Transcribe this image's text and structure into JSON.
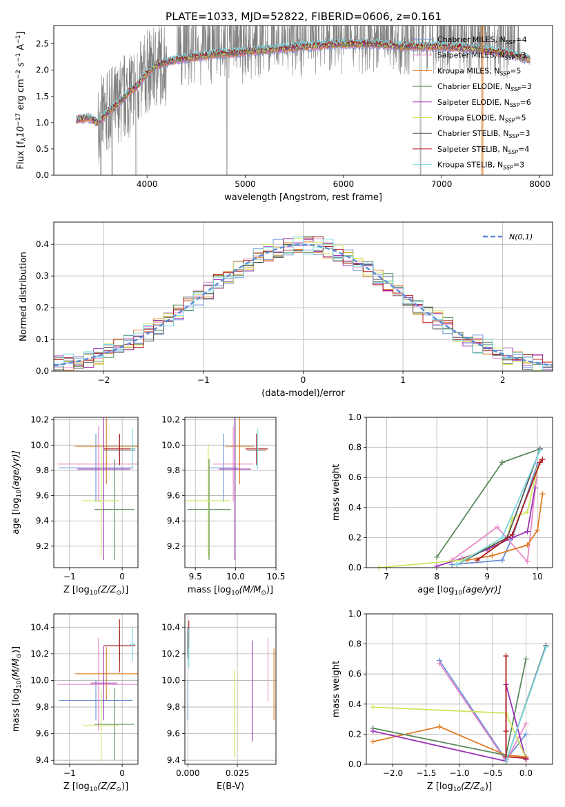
{
  "figure": {
    "title": "PLATE=1033, MJD=52822, FIBERID=0606, z=0.161",
    "model_colors": {
      "Chabrier MILES": "#6b8fd6",
      "Salpeter MILES": "#e98ac6",
      "Kroupa MILES": "#e07b22",
      "Chabrier ELODIE": "#5a8a5a",
      "Salpeter ELODIE": "#9b30b5",
      "Kroupa ELODIE": "#cde65c",
      "Chabrier STELIB": "#555555",
      "Salpeter STELIB": "#b01818",
      "Kroupa STELIB": "#7ad8e0"
    }
  },
  "chart_data": [
    {
      "id": "spectrum",
      "type": "line",
      "xlabel": "wavelength [Angstrom, rest frame]",
      "ylabel": "Flux [f",
      "ylabel_sub": "λ",
      "ylabel_rest": "10",
      "ylabel_exp": "−17",
      "ylabel_units": " erg cm",
      "ylabel_units_exp1": "−2",
      "ylabel_units2": " s",
      "ylabel_units_exp2": "−1",
      "ylabel_units3": " A",
      "ylabel_units_exp3": "−1",
      "ylabel_end": "]",
      "xlim": [
        3050,
        8130
      ],
      "ylim": [
        0,
        2.85
      ],
      "xticks": [
        "4000",
        "5000",
        "6000",
        "7000",
        "8000"
      ],
      "xtick_values": [
        4000,
        5000,
        6000,
        7000,
        8000
      ],
      "yticks": [
        "0.0",
        "0.5",
        "1.0",
        "1.5",
        "2.0",
        "2.5"
      ],
      "ytick_values": [
        0,
        0.5,
        1.0,
        1.5,
        2.0,
        2.5
      ],
      "data_color": "#808080",
      "continuum": [
        [
          3280,
          1.05
        ],
        [
          3400,
          1.1
        ],
        [
          3500,
          1.0
        ],
        [
          3600,
          1.2
        ],
        [
          3700,
          1.35
        ],
        [
          3800,
          1.55
        ],
        [
          3900,
          1.7
        ],
        [
          4000,
          1.95
        ],
        [
          4100,
          2.1
        ],
        [
          4300,
          2.2
        ],
        [
          4500,
          2.25
        ],
        [
          4700,
          2.3
        ],
        [
          5000,
          2.35
        ],
        [
          5300,
          2.4
        ],
        [
          5600,
          2.45
        ],
        [
          6000,
          2.5
        ],
        [
          6300,
          2.5
        ],
        [
          6600,
          2.45
        ],
        [
          7000,
          2.45
        ],
        [
          7400,
          2.4
        ],
        [
          7700,
          2.3
        ],
        [
          7900,
          2.2
        ]
      ],
      "legend": [
        {
          "label": "Chabrier MILES, N",
          "sub": "SSP",
          "tail": "=4",
          "color": "#6b8fd6"
        },
        {
          "label": "Salpeter MILES, N",
          "sub": "SSP",
          "tail": "=3",
          "color": "#e98ac6"
        },
        {
          "label": "Kroupa MILES, N",
          "sub": "SSP",
          "tail": "=5",
          "color": "#e07b22"
        },
        {
          "label": "Chabrier ELODIE, N",
          "sub": "SSP",
          "tail": "=3",
          "color": "#5a8a5a"
        },
        {
          "label": "Salpeter ELODIE, N",
          "sub": "SSP",
          "tail": "=6",
          "color": "#9b30b5"
        },
        {
          "label": "Kroupa ELODIE, N",
          "sub": "SSP",
          "tail": "=5",
          "color": "#cde65c"
        },
        {
          "label": "Chabrier STELIB, N",
          "sub": "SSP",
          "tail": "=3",
          "color": "#555555"
        },
        {
          "label": "Salpeter STELIB, N",
          "sub": "SSP",
          "tail": "=4",
          "color": "#b01818"
        },
        {
          "label": "Kroupa STELIB, N",
          "sub": "SSP",
          "tail": "=3",
          "color": "#7ad8e0"
        }
      ]
    },
    {
      "id": "residuals",
      "type": "histogram",
      "xlabel": "(data-model)/error",
      "ylabel": "Normed distribution",
      "xlim": [
        -2.5,
        2.5
      ],
      "ylim": [
        0,
        0.47
      ],
      "xticks": [
        "−2",
        "−1",
        "0",
        "1",
        "2"
      ],
      "xtick_values": [
        -2,
        -1,
        0,
        1,
        2
      ],
      "yticks": [
        "0.0",
        "0.1",
        "0.2",
        "0.3",
        "0.4"
      ],
      "ytick_values": [
        0,
        0.1,
        0.2,
        0.3,
        0.4
      ],
      "bin_width": 0.1,
      "legend": "N(0,1)",
      "gaussian_color": "#5b8ad6"
    },
    {
      "id": "age-vs-z",
      "type": "errorbar",
      "xlabel": "Z [log",
      "xlabel_sub": "10",
      "xlabel_rest": "(Z/Z",
      "xlabel_sun": "⊙",
      "xlabel_end": ")]",
      "ylabel": "age  [log",
      "ylabel_sub": "10",
      "ylabel_rest": "(age/yr)]",
      "xlim": [
        -1.3,
        0.3
      ],
      "ylim": [
        9.03,
        10.22
      ],
      "xticks": [
        "−1",
        "0"
      ],
      "xtick_values": [
        -1,
        0
      ],
      "yticks": [
        "9.2",
        "9.4",
        "9.6",
        "9.8",
        "10.0",
        "10.2"
      ],
      "ytick_values": [
        9.2,
        9.4,
        9.6,
        9.8,
        10.0,
        10.2
      ],
      "points": [
        {
          "model": "Chabrier MILES",
          "x": -0.5,
          "xerr": 0.7,
          "y": 9.82,
          "yerr": 0.27
        },
        {
          "model": "Salpeter MILES",
          "x": -0.45,
          "xerr": 0.78,
          "y": 9.85,
          "yerr": 0.3
        },
        {
          "model": "Kroupa MILES",
          "x": -0.3,
          "xerr": 0.6,
          "y": 9.99,
          "yerr": 0.3
        },
        {
          "model": "Chabrier ELODIE",
          "x": -0.15,
          "xerr": 0.38,
          "y": 9.49,
          "yerr": 0.4
        },
        {
          "model": "Salpeter ELODIE",
          "x": -0.35,
          "xerr": 0.5,
          "y": 9.81,
          "yerr": 0.72
        },
        {
          "model": "Kroupa ELODIE",
          "x": -0.4,
          "xerr": 0.35,
          "y": 9.56,
          "yerr": 0.45
        },
        {
          "model": "Chabrier STELIB",
          "x": -0.05,
          "xerr": 0.3,
          "y": 9.96,
          "yerr": 0.12
        },
        {
          "model": "Salpeter STELIB",
          "x": -0.05,
          "xerr": 0.3,
          "y": 9.97,
          "yerr": 0.12
        },
        {
          "model": "Kroupa STELIB",
          "x": 0.2,
          "xerr": 0.05,
          "y": 9.97,
          "yerr": 0.16
        }
      ]
    },
    {
      "id": "age-vs-mass",
      "type": "errorbar",
      "xlabel": "mass [log",
      "xlabel_sub": "10",
      "xlabel_rest": "(M/M",
      "xlabel_sun": "⊙",
      "xlabel_end": ")]",
      "xlim": [
        9.37,
        10.5
      ],
      "ylim": [
        9.03,
        10.22
      ],
      "xticks": [
        "9.5",
        "10.0",
        "10.5"
      ],
      "xtick_values": [
        9.5,
        10.0,
        10.5
      ],
      "yticks": [
        "9.2",
        "9.4",
        "9.6",
        "9.8",
        "10.0",
        "10.2"
      ],
      "ytick_values": [
        9.2,
        9.4,
        9.6,
        9.8,
        10.0,
        10.2
      ],
      "points": [
        {
          "model": "Chabrier MILES",
          "x": 9.85,
          "xerr": 0.18,
          "y": 9.82,
          "yerr": 0.27
        },
        {
          "model": "Salpeter MILES",
          "x": 9.97,
          "xerr": 0.25,
          "y": 9.85,
          "yerr": 0.3
        },
        {
          "model": "Kroupa MILES",
          "x": 10.05,
          "xerr": 0.18,
          "y": 9.99,
          "yerr": 0.3
        },
        {
          "model": "Chabrier ELODIE",
          "x": 9.67,
          "xerr": 0.27,
          "y": 9.49,
          "yerr": 0.4
        },
        {
          "model": "Salpeter ELODIE",
          "x": 9.99,
          "xerr": 0.2,
          "y": 9.81,
          "yerr": 0.72
        },
        {
          "model": "Kroupa ELODIE",
          "x": 9.66,
          "xerr": 0.27,
          "y": 9.56,
          "yerr": 0.45
        },
        {
          "model": "Chabrier STELIB",
          "x": 10.26,
          "xerr": 0.12,
          "y": 9.96,
          "yerr": 0.12
        },
        {
          "model": "Salpeter STELIB",
          "x": 10.26,
          "xerr": 0.14,
          "y": 9.97,
          "yerr": 0.12
        },
        {
          "model": "Kroupa STELIB",
          "x": 10.27,
          "xerr": 0.01,
          "y": 9.97,
          "yerr": 0.16
        }
      ]
    },
    {
      "id": "weight-vs-age",
      "type": "line",
      "xlabel": "age  [log",
      "xlabel_sub": "10",
      "xlabel_rest": "(age/yr)]",
      "ylabel": "mass weight",
      "xlim": [
        6.6,
        10.3
      ],
      "ylim": [
        0,
        1.0
      ],
      "xticks": [
        "7",
        "8",
        "9",
        "10"
      ],
      "xtick_values": [
        7,
        8,
        9,
        10
      ],
      "yticks": [
        "0.0",
        "0.2",
        "0.4",
        "0.6",
        "0.8",
        "1.0"
      ],
      "ytick_values": [
        0,
        0.2,
        0.4,
        0.6,
        0.8,
        1.0
      ],
      "series": [
        {
          "model": "Chabrier MILES",
          "x": [
            8.3,
            9.3,
            9.5,
            10.0
          ],
          "y": [
            0.02,
            0.05,
            0.2,
            0.69
          ]
        },
        {
          "model": "Salpeter MILES",
          "x": [
            8.3,
            9.2,
            9.8,
            10.0
          ],
          "y": [
            0.05,
            0.27,
            0.04,
            0.66
          ]
        },
        {
          "model": "Kroupa MILES",
          "x": [
            8.6,
            9.1,
            9.8,
            10.0,
            10.1
          ],
          "y": [
            0.05,
            0.08,
            0.15,
            0.25,
            0.49
          ]
        },
        {
          "model": "Chabrier ELODIE",
          "x": [
            8.0,
            9.3,
            10.05
          ],
          "y": [
            0.07,
            0.7,
            0.79
          ]
        },
        {
          "model": "Salpeter ELODIE",
          "x": [
            8.0,
            8.5,
            9.0,
            9.5,
            9.8,
            9.95
          ],
          "y": [
            0.01,
            0.06,
            0.12,
            0.2,
            0.24,
            0.53
          ]
        },
        {
          "model": "Kroupa ELODIE",
          "x": [
            6.85,
            8.5,
            9.4,
            9.5,
            9.8,
            10.0
          ],
          "y": [
            0.0,
            0.05,
            0.2,
            0.33,
            0.37,
            0.66
          ]
        },
        {
          "model": "Chabrier STELIB",
          "x": [
            8.4,
            9.4,
            10.05
          ],
          "y": [
            0.02,
            0.2,
            0.79
          ]
        },
        {
          "model": "Salpeter STELIB",
          "x": [
            8.8,
            9.5,
            10.05,
            10.1
          ],
          "y": [
            0.05,
            0.22,
            0.7,
            0.72
          ]
        },
        {
          "model": "Kroupa STELIB",
          "x": [
            8.4,
            9.3,
            10.05
          ],
          "y": [
            0.02,
            0.2,
            0.78
          ]
        }
      ]
    },
    {
      "id": "mass-vs-z",
      "type": "errorbar",
      "xlabel": "Z [log",
      "xlabel_sub": "10",
      "xlabel_rest": "(Z/Z",
      "xlabel_sun": "⊙",
      "xlabel_end": ")]",
      "ylabel": "mass [log",
      "ylabel_sub": "10",
      "ylabel_rest": "(M/M",
      "ylabel_sun": "⊙",
      "ylabel_end": ")]",
      "xlim": [
        -1.3,
        0.3
      ],
      "ylim": [
        9.37,
        10.5
      ],
      "xticks": [
        "−1",
        "0"
      ],
      "xtick_values": [
        -1,
        0
      ],
      "yticks": [
        "9.4",
        "9.6",
        "9.8",
        "10.0",
        "10.2",
        "10.4"
      ],
      "ytick_values": [
        9.4,
        9.6,
        9.8,
        10.0,
        10.2,
        10.4
      ],
      "points": [
        {
          "model": "Chabrier MILES",
          "x": -0.5,
          "xerr": 0.7,
          "y": 9.85,
          "yerr": 0.15
        },
        {
          "model": "Salpeter MILES",
          "x": -0.45,
          "xerr": 0.78,
          "y": 9.97,
          "yerr": 0.35
        },
        {
          "model": "Kroupa MILES",
          "x": -0.3,
          "xerr": 0.6,
          "y": 10.05,
          "yerr": 0.2
        },
        {
          "model": "Chabrier ELODIE",
          "x": -0.15,
          "xerr": 0.38,
          "y": 9.67,
          "yerr": 0.27
        },
        {
          "model": "Salpeter ELODIE",
          "x": -0.35,
          "xerr": 0.25,
          "y": 9.98,
          "yerr": 0.28
        },
        {
          "model": "Kroupa ELODIE",
          "x": -0.4,
          "xerr": 0.35,
          "y": 9.66,
          "yerr": 0.27
        },
        {
          "model": "Chabrier STELIB",
          "x": -0.05,
          "xerr": 0.3,
          "y": 10.26,
          "yerr": 0.12
        },
        {
          "model": "Salpeter STELIB",
          "x": -0.05,
          "xerr": 0.3,
          "y": 10.26,
          "yerr": 0.2
        },
        {
          "model": "Kroupa STELIB",
          "x": 0.2,
          "xerr": 0.05,
          "y": 10.27,
          "yerr": 0.13
        }
      ]
    },
    {
      "id": "mass-vs-ebv",
      "type": "errorbar",
      "xlabel": "E(B-V)",
      "xlim": [
        -0.0015,
        0.0445
      ],
      "ylim": [
        9.37,
        10.5
      ],
      "xticks": [
        "0.000",
        "0.025"
      ],
      "xtick_values": [
        0,
        0.025
      ],
      "yticks": [
        "9.4",
        "9.6",
        "9.8",
        "10.0",
        "10.2",
        "10.4"
      ],
      "ytick_values": [
        9.4,
        9.6,
        9.8,
        10.0,
        10.2,
        10.4
      ],
      "points": [
        {
          "model": "Chabrier MILES",
          "x": 0.0,
          "y": 9.85,
          "yerr": 0.15
        },
        {
          "model": "Salpeter MILES",
          "x": 0.0405,
          "y": 10.08,
          "yerr": 0.24
        },
        {
          "model": "Kroupa MILES",
          "x": 0.0435,
          "y": 9.97,
          "yerr": 0.27
        },
        {
          "model": "Chabrier ELODIE",
          "x": 0.0,
          "y": 10.26,
          "yerr": 0.1
        },
        {
          "model": "Salpeter ELODIE",
          "x": 0.0325,
          "y": 9.92,
          "yerr": 0.38
        },
        {
          "model": "Kroupa ELODIE",
          "x": 0.0235,
          "y": 9.75,
          "yerr": 0.33
        },
        {
          "model": "Chabrier STELIB",
          "x": 0.0,
          "y": 10.3,
          "yerr": 0.1
        },
        {
          "model": "Salpeter STELIB",
          "x": 0.0005,
          "y": 10.35,
          "yerr": 0.1
        },
        {
          "model": "Kroupa STELIB",
          "x": 0.0005,
          "y": 10.24,
          "yerr": 0.15
        }
      ]
    },
    {
      "id": "weight-vs-z",
      "type": "line",
      "xlabel": "Z [log",
      "xlabel_sub": "10",
      "xlabel_rest": "(Z/Z",
      "xlabel_sun": "⊙",
      "xlabel_end": ")]",
      "ylabel": "mass weight",
      "xlim": [
        -2.4,
        0.4
      ],
      "ylim": [
        0,
        1.0
      ],
      "xticks": [
        "−2.0",
        "−1.5",
        "−1.0",
        "−0.5",
        "0.0"
      ],
      "xtick_values": [
        -2.0,
        -1.5,
        -1.0,
        -0.5,
        0.0
      ],
      "yticks": [
        "0.0",
        "0.2",
        "0.4",
        "0.6",
        "0.8",
        "1.0"
      ],
      "ytick_values": [
        0,
        0.2,
        0.4,
        0.6,
        0.8,
        1.0
      ],
      "series": [
        {
          "model": "Chabrier MILES",
          "x": [
            -1.3,
            -0.3,
            0.0
          ],
          "y": [
            0.69,
            0.03,
            0.2
          ]
        },
        {
          "model": "Salpeter MILES",
          "x": [
            -1.3,
            -0.3,
            0.0
          ],
          "y": [
            0.67,
            0.02,
            0.27
          ]
        },
        {
          "model": "Kroupa MILES",
          "x": [
            -2.3,
            -1.3,
            -0.3,
            0.0
          ],
          "y": [
            0.15,
            0.25,
            0.06,
            0.05
          ]
        },
        {
          "model": "Chabrier ELODIE",
          "x": [
            -2.3,
            -0.3,
            0.0
          ],
          "y": [
            0.24,
            0.06,
            0.7
          ]
        },
        {
          "model": "Salpeter ELODIE",
          "x": [
            -2.3,
            -0.3,
            -0.3,
            0.0
          ],
          "y": [
            0.22,
            0.02,
            0.53,
            0.03
          ]
        },
        {
          "model": "Kroupa ELODIE",
          "x": [
            -2.3,
            -0.3,
            0.0
          ],
          "y": [
            0.38,
            0.34,
            0.04
          ]
        },
        {
          "model": "Chabrier STELIB",
          "x": [
            -0.3,
            0.3
          ],
          "y": [
            0.02,
            0.79
          ]
        },
        {
          "model": "Salpeter STELIB",
          "x": [
            -0.3,
            -0.3,
            -0.3,
            0.0
          ],
          "y": [
            0.72,
            0.22,
            0.05,
            0.04
          ]
        },
        {
          "model": "Kroupa STELIB",
          "x": [
            -0.3,
            0.3
          ],
          "y": [
            0.02,
            0.78
          ]
        }
      ]
    }
  ]
}
